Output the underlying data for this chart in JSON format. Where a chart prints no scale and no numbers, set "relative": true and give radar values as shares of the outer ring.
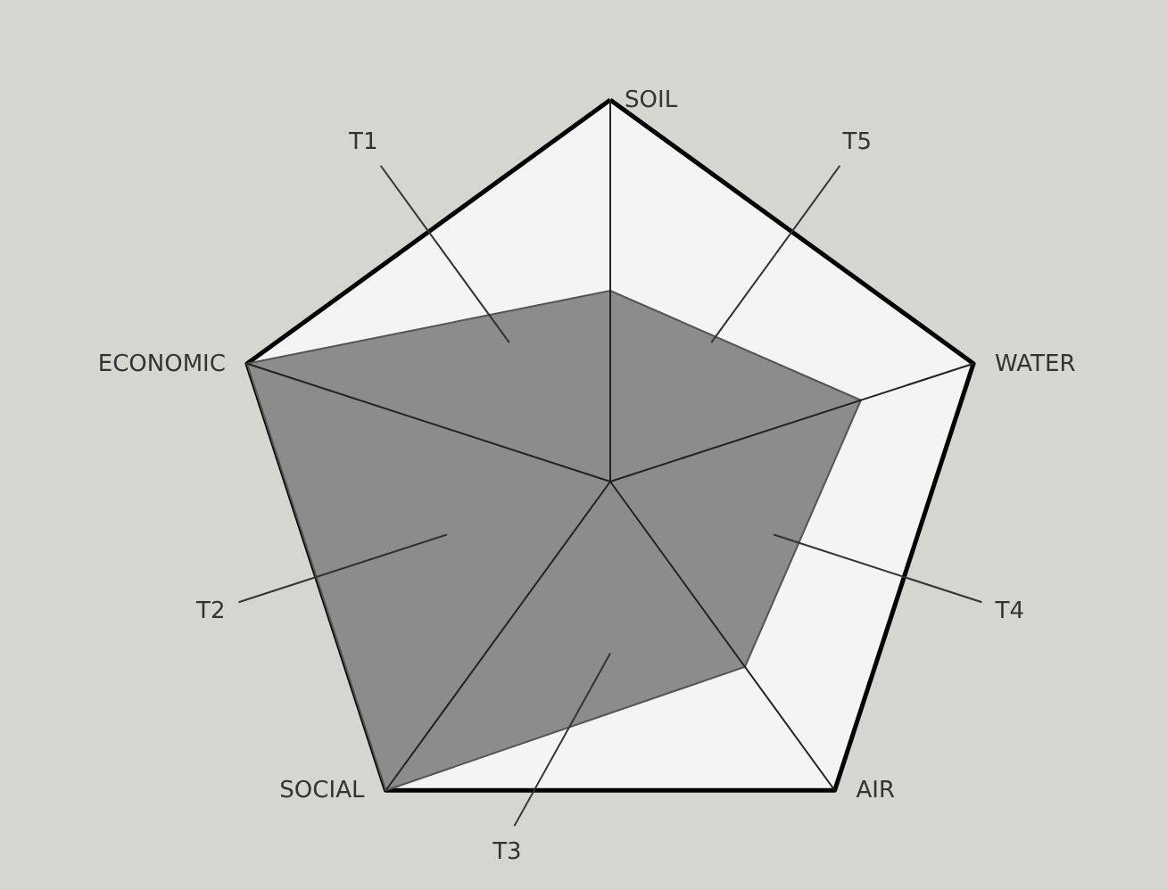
{
  "chart_data": {
    "type": "radar",
    "relative": true,
    "categories": [
      "SOIL",
      "WATER",
      "AIR",
      "SOCIAL",
      "ECONOMIC"
    ],
    "series": [
      {
        "color": "#8c8c8c",
        "values": [
          0.5,
          0.69,
          0.6,
          1,
          1
        ]
      }
    ],
    "annotations": [
      "T1",
      "T2",
      "T3",
      "T4",
      "T5"
    ]
  }
}
